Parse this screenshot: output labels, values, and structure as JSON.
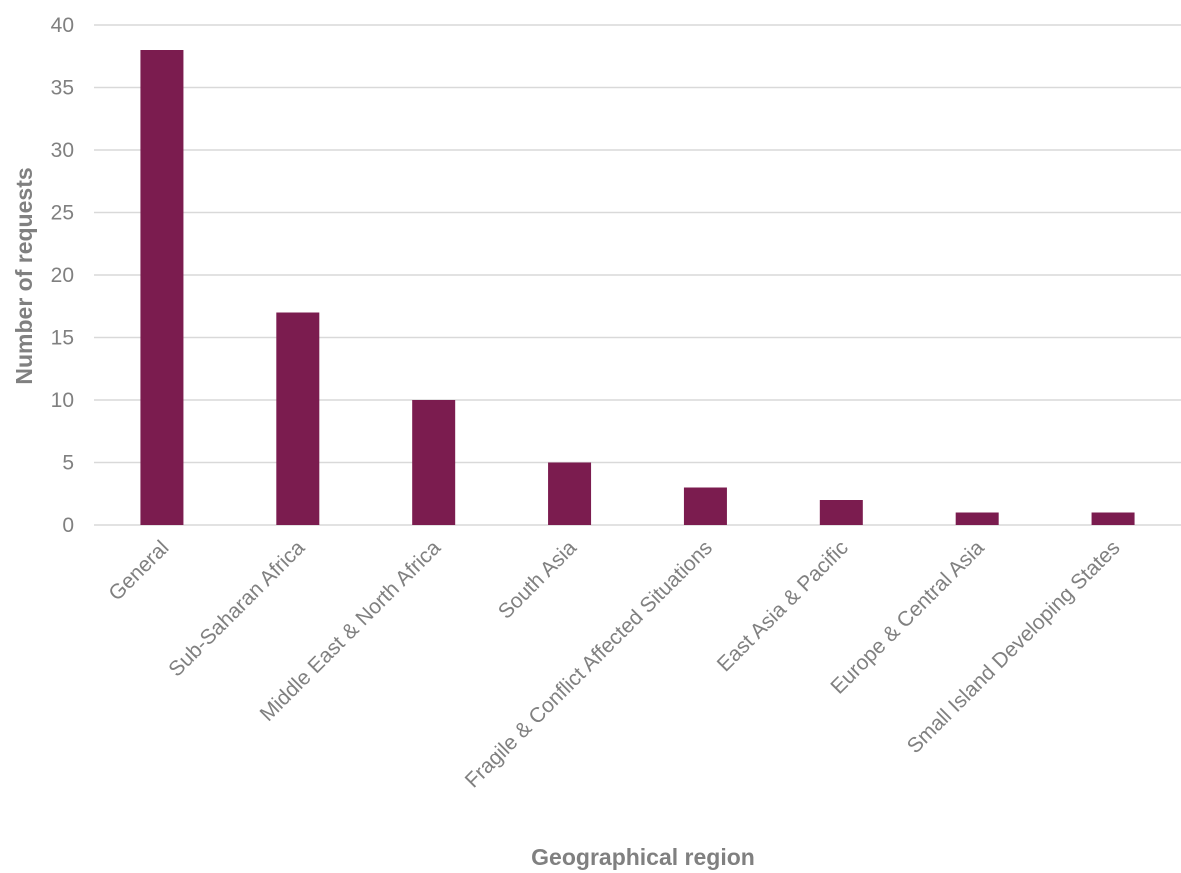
{
  "chart_data": {
    "type": "bar",
    "title": "",
    "xlabel": "Geographical region",
    "ylabel": "Number of requests",
    "ylim": [
      0,
      40
    ],
    "yticks": [
      0,
      5,
      10,
      15,
      20,
      25,
      30,
      35,
      40
    ],
    "grid": true,
    "legend": "none",
    "bar_color": "#7b1c4f",
    "categories": [
      "General",
      "Sub-Saharan Africa",
      "Middle East & North Africa",
      "South Asia",
      "Fragile & Conflict Affected Situations",
      "East Asia & Pacific",
      "Europe & Central Asia",
      "Small Island Developing States"
    ],
    "values": [
      38,
      17,
      10,
      5,
      3,
      2,
      1,
      1
    ]
  }
}
